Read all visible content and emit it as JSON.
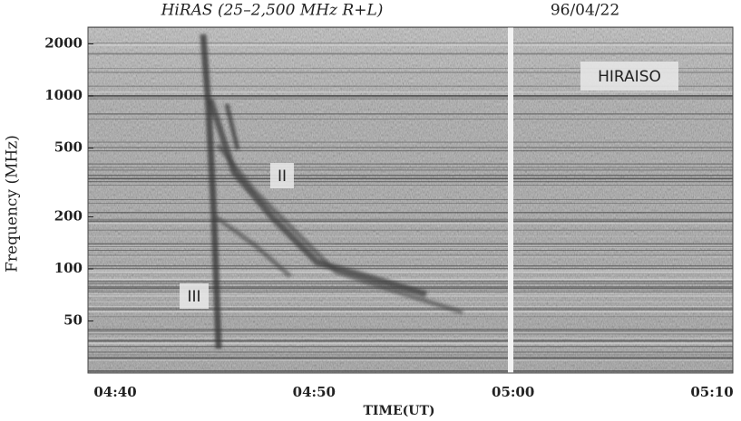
{
  "chart_data": {
    "type": "spectrogram",
    "title": "HiRAS (25–2,500 MHz R+L)",
    "date": "96/04/22",
    "xlabel": "TIME(UT)",
    "ylabel": "Frequency (MHz)",
    "yscale": "log",
    "ylim": [
      25,
      2500
    ],
    "yticks": [
      50,
      100,
      200,
      500,
      1000,
      2000
    ],
    "xticks": [
      "04:40",
      "04:50",
      "05:00",
      "05:10"
    ],
    "annotations": [
      "HIRAISO",
      "II",
      "III"
    ]
  }
}
